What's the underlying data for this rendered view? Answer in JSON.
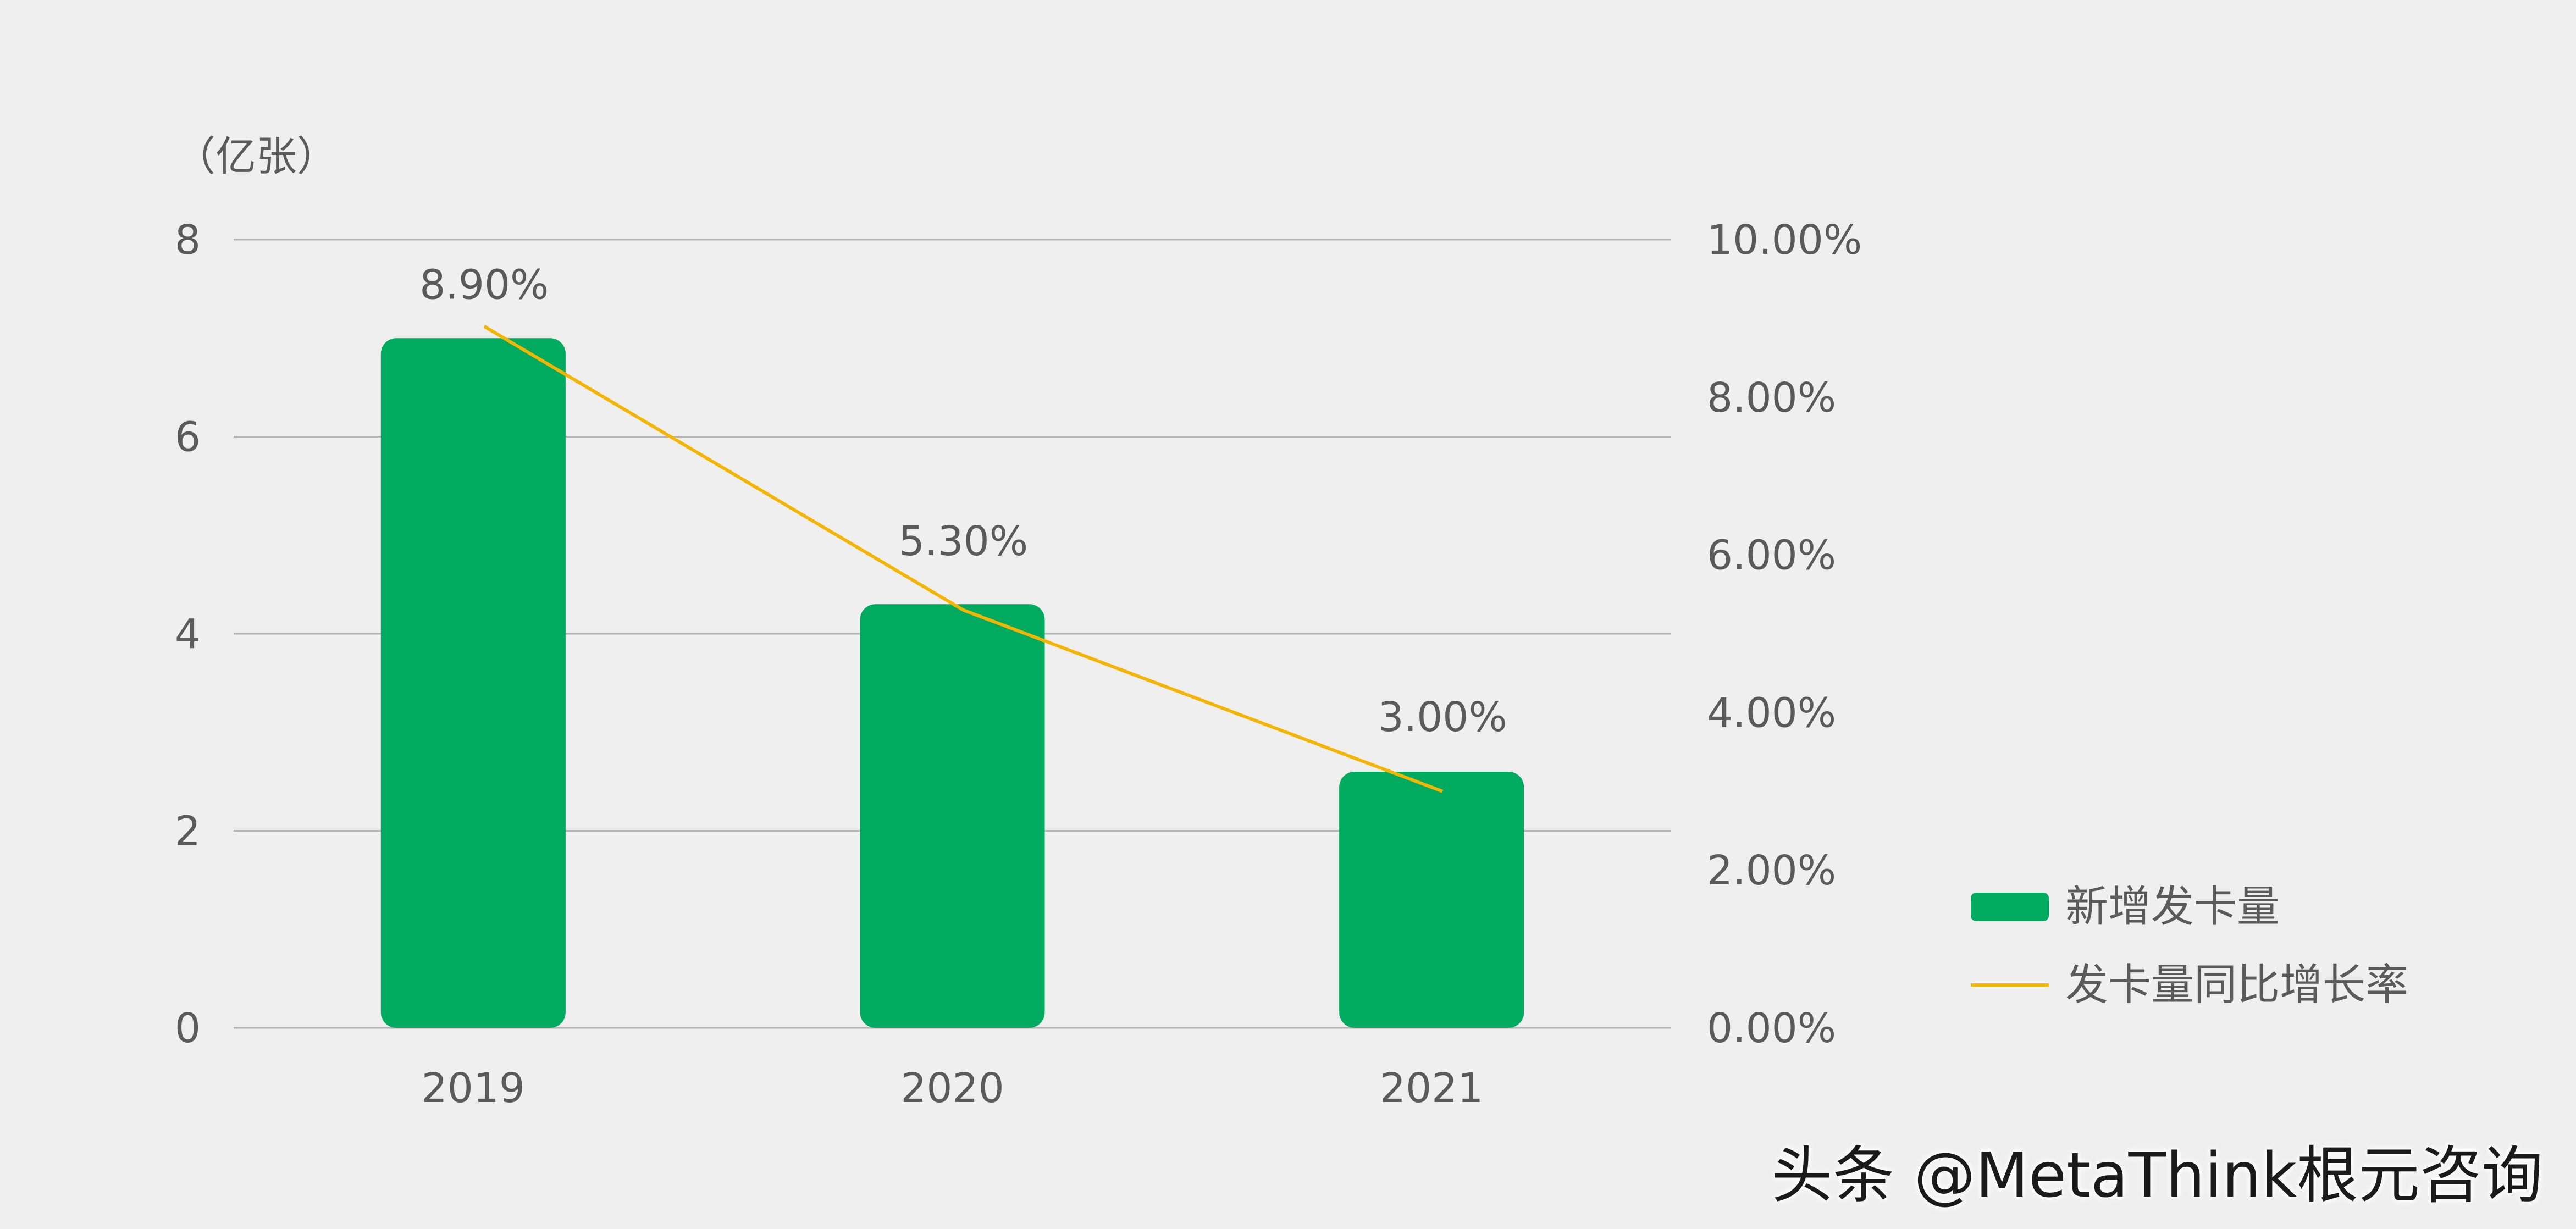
{
  "chart_data": {
    "type": "bar",
    "categories": [
      "2019",
      "2020",
      "2021"
    ],
    "series": [
      {
        "name": "新增发卡量",
        "kind": "bar",
        "axis": "left",
        "values": [
          7.0,
          4.3,
          2.6
        ],
        "color": "#00ab5f"
      },
      {
        "name": "发卡量同比增长率",
        "kind": "line",
        "axis": "right",
        "values": [
          8.9,
          5.3,
          3.0
        ],
        "labels": [
          "8.90%",
          "5.30%",
          "3.00%"
        ],
        "color": "#f5b400"
      }
    ],
    "y_left": {
      "unit_label": "（亿张）",
      "ylim": [
        0,
        8
      ],
      "ticks": [
        "0",
        "2",
        "4",
        "6",
        "8"
      ]
    },
    "y_right": {
      "ylim": [
        0,
        10
      ],
      "ticks": [
        "0.00%",
        "2.00%",
        "4.00%",
        "6.00%",
        "8.00%",
        "10.00%"
      ]
    },
    "grid": true,
    "legend_position": "right"
  },
  "watermark": "头条 @MetaThink根元咨询"
}
